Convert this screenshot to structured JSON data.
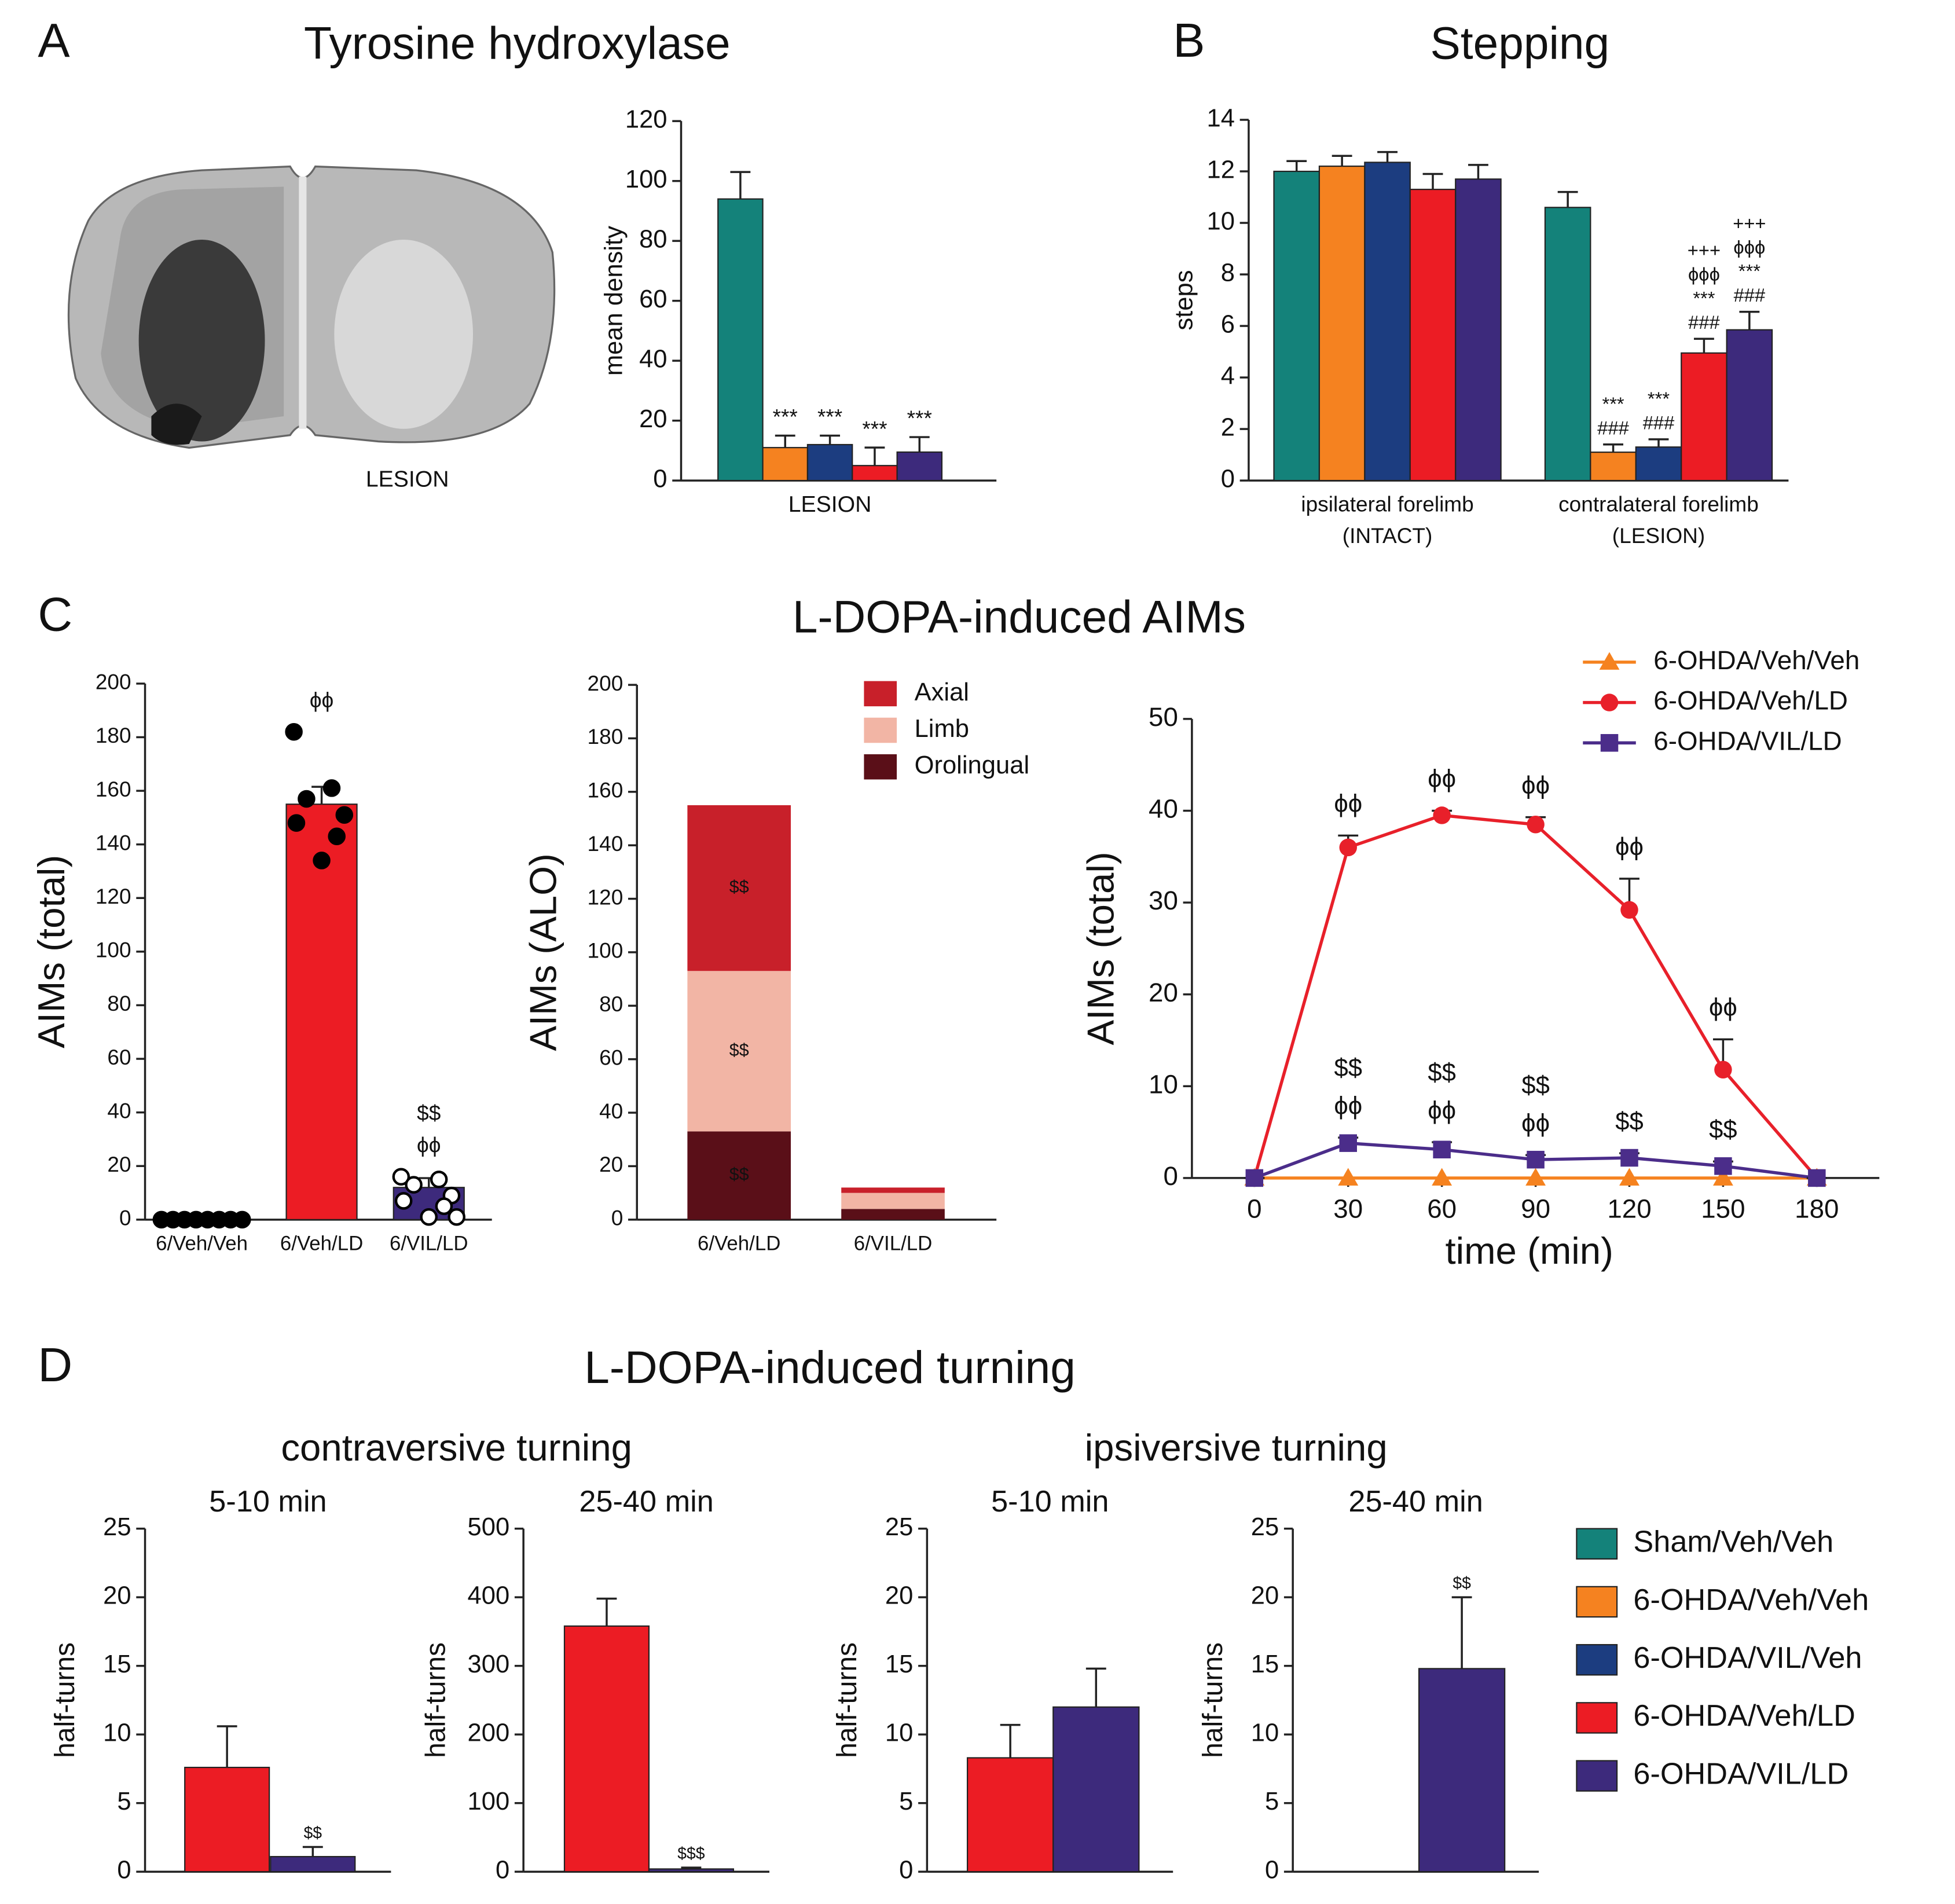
{
  "panels": [
    {
      "letter": "A",
      "title": "Tyrosine hydroxylase"
    },
    {
      "letter": "B",
      "title": "Stepping"
    },
    {
      "letter": "C",
      "title": "L-DOPA-induced AIMs"
    },
    {
      "letter": "D",
      "title": "L-DOPA-induced turning"
    }
  ],
  "d_groups": [
    "contraversive turning",
    "ipsiversive turning"
  ],
  "image_label": "LESION",
  "chart_data": [
    {
      "type": "grouped_bar",
      "ylabel": "mean density",
      "categories": [
        [
          "LESION"
        ]
      ],
      "ylim": [
        0,
        120
      ],
      "yticks": [
        0,
        20,
        40,
        60,
        80,
        100,
        120
      ],
      "series": [
        {
          "color": "#14827a",
          "values": [
            94
          ],
          "errors": [
            9
          ],
          "annotations": [
            null
          ]
        },
        {
          "color": "#f58220",
          "values": [
            11
          ],
          "errors": [
            4
          ],
          "annotations": [
            [
              "***"
            ]
          ]
        },
        {
          "color": "#1c3d80",
          "values": [
            12
          ],
          "errors": [
            3
          ],
          "annotations": [
            [
              "***"
            ]
          ]
        },
        {
          "color": "#ec1c24",
          "values": [
            5
          ],
          "errors": [
            6
          ],
          "annotations": [
            [
              "***"
            ]
          ]
        },
        {
          "color": "#3d2a7c",
          "values": [
            9.5
          ],
          "errors": [
            5
          ],
          "annotations": [
            [
              "***"
            ]
          ]
        }
      ]
    },
    {
      "type": "grouped_bar",
      "ylabel": "steps",
      "categories": [
        [
          "ipsilateral forelimb",
          "(INTACT)"
        ],
        [
          "contralateral forelimb",
          "(LESION)"
        ]
      ],
      "ylim": [
        0,
        14
      ],
      "yticks": [
        0,
        2,
        4,
        6,
        8,
        10,
        12,
        14
      ],
      "series": [
        {
          "name": "Sham/Veh/Veh",
          "color": "#14827a",
          "values": [
            12,
            10.6
          ],
          "errors": [
            0.4,
            0.6
          ],
          "annotations": [
            null,
            null
          ]
        },
        {
          "name": "6-OHDA/Veh/Veh",
          "color": "#f58220",
          "values": [
            12.2,
            1.1
          ],
          "errors": [
            0.4,
            0.3
          ],
          "annotations": [
            null,
            [
              "***",
              "###"
            ]
          ]
        },
        {
          "name": "6-OHDA/VIL/Veh",
          "color": "#1c3d80",
          "values": [
            12.35,
            1.3
          ],
          "errors": [
            0.4,
            0.3
          ],
          "annotations": [
            null,
            [
              "***",
              "###"
            ]
          ]
        },
        {
          "name": "6-OHDA/Veh/LD",
          "color": "#ec1c24",
          "values": [
            11.3,
            4.95
          ],
          "errors": [
            0.6,
            0.55
          ],
          "annotations": [
            null,
            [
              "+++",
              "ϕϕϕ",
              "***",
              "###"
            ]
          ]
        },
        {
          "name": "6-OHDA/VIL/LD",
          "color": "#3d2a7c",
          "values": [
            11.7,
            5.85
          ],
          "errors": [
            0.55,
            0.7
          ],
          "annotations": [
            null,
            [
              "+++",
              "ϕϕϕ",
              "***",
              "###"
            ]
          ]
        }
      ]
    },
    {
      "type": "bar",
      "ylabel": "AIMs (total)",
      "categories": [
        "6/Veh/Veh",
        "6/Veh/LD",
        "6/VIL/LD"
      ],
      "ylim": [
        0,
        200
      ],
      "yticks": [
        0,
        20,
        40,
        60,
        80,
        100,
        120,
        140,
        160,
        180,
        200
      ],
      "values": [
        0,
        155,
        12
      ],
      "errors": [
        0,
        6.5,
        3.5
      ],
      "colors": [
        "#000000",
        "#ec1c24",
        "#3d2a7c"
      ],
      "annotations": [
        null,
        [
          "ϕϕ"
        ],
        [
          "$$",
          "ϕϕ"
        ]
      ],
      "marker_fill": [
        "#000000",
        "#000000",
        "#ffffff"
      ],
      "points": [
        [
          0,
          0,
          0,
          0,
          0,
          0,
          0,
          0
        ],
        [
          182,
          161,
          157,
          151,
          148,
          143,
          134
        ],
        [
          16,
          15,
          13,
          9,
          7,
          5,
          1,
          1
        ]
      ]
    },
    {
      "type": "stacked_bar",
      "ylabel": "AIMs (ALO)",
      "categories": [
        "6/Veh/LD",
        "6/VIL/LD"
      ],
      "ylim": [
        0,
        200
      ],
      "yticks": [
        0,
        20,
        40,
        60,
        80,
        100,
        120,
        140,
        160,
        180,
        200
      ],
      "series": [
        {
          "name": "Orolingual",
          "color": "#5a0f18",
          "values": [
            33,
            4
          ],
          "annotations": [
            "$$",
            null
          ]
        },
        {
          "name": "Limb",
          "color": "#f2b5a5",
          "values": [
            60,
            6
          ],
          "annotations": [
            "$$",
            null
          ]
        },
        {
          "name": "Axial",
          "color": "#c8202a",
          "values": [
            62,
            2
          ],
          "annotations": [
            "$$",
            null
          ]
        }
      ]
    },
    {
      "type": "line",
      "ylabel": "AIMs (total)",
      "xlabel": "time (min)",
      "x": [
        0,
        30,
        60,
        90,
        120,
        150,
        180
      ],
      "xlim": [
        -20,
        200
      ],
      "xticks": [
        0,
        30,
        60,
        90,
        120,
        150,
        180
      ],
      "ylim": [
        0,
        50
      ],
      "yticks": [
        0,
        10,
        20,
        30,
        40,
        50
      ],
      "series": [
        {
          "name": "6-OHDA/Veh/Veh",
          "color": "#f5821f",
          "marker": "triangle",
          "values": [
            0,
            0,
            0,
            0,
            0,
            0,
            0
          ]
        },
        {
          "name": "6-OHDA/Veh/LD",
          "color": "#e8202a",
          "marker": "circle",
          "values": [
            0,
            36,
            39.5,
            38.5,
            29.2,
            11.8,
            0
          ],
          "errors": [
            0,
            1.3,
            0.5,
            0.8,
            3.4,
            3.3,
            0
          ],
          "annotations": [
            null,
            [
              "ϕϕ"
            ],
            [
              "ϕϕ"
            ],
            [
              "ϕϕ"
            ],
            [
              "ϕϕ"
            ],
            [
              "ϕϕ"
            ],
            null
          ]
        },
        {
          "name": "6-OHDA/VIL/LD",
          "color": "#4b2d8a",
          "marker": "square",
          "values": [
            0,
            3.8,
            3.1,
            2,
            2.2,
            1.3,
            0
          ],
          "errors": [
            0,
            0.6,
            0.8,
            0.5,
            0.5,
            0.5,
            0
          ],
          "annotations": [
            null,
            [
              "$$",
              "ϕϕ"
            ],
            [
              "$$",
              "ϕϕ"
            ],
            [
              "$$",
              "ϕϕ"
            ],
            [
              "$$"
            ],
            [
              "$$"
            ],
            null
          ]
        }
      ]
    },
    {
      "type": "bar",
      "title": "5-10 min",
      "ylabel": "half-turns",
      "ylim": [
        0,
        25
      ],
      "yticks": [
        0,
        5,
        10,
        15,
        20,
        25
      ],
      "values": [
        7.6,
        1.1
      ],
      "errors": [
        3,
        0.7
      ],
      "colors": [
        "#ec1c24",
        "#3d2a7c"
      ],
      "annotations": [
        null,
        [
          "$$"
        ]
      ]
    },
    {
      "type": "bar",
      "title": "25-40 min",
      "ylabel": "half-turns",
      "ylim": [
        0,
        500
      ],
      "yticks": [
        0,
        100,
        200,
        300,
        400,
        500
      ],
      "values": [
        358,
        4
      ],
      "errors": [
        40,
        2
      ],
      "colors": [
        "#ec1c24",
        "#3d2a7c"
      ],
      "annotations": [
        null,
        [
          "$$$"
        ]
      ]
    },
    {
      "type": "bar",
      "title": "5-10 min",
      "ylabel": "half-turns",
      "ylim": [
        0,
        25
      ],
      "yticks": [
        0,
        5,
        10,
        15,
        20,
        25
      ],
      "values": [
        8.3,
        12
      ],
      "errors": [
        2.4,
        2.8
      ],
      "colors": [
        "#ec1c24",
        "#3d2a7c"
      ],
      "annotations": [
        null,
        null
      ]
    },
    {
      "type": "bar",
      "title": "25-40 min",
      "ylabel": "half-turns",
      "ylim": [
        0,
        25
      ],
      "yticks": [
        0,
        5,
        10,
        15,
        20,
        25
      ],
      "values": [
        0,
        14.8
      ],
      "errors": [
        0,
        5.2
      ],
      "colors": [
        "#ec1c24",
        "#3d2a7c"
      ],
      "annotations": [
        null,
        [
          "$$"
        ]
      ]
    }
  ]
}
